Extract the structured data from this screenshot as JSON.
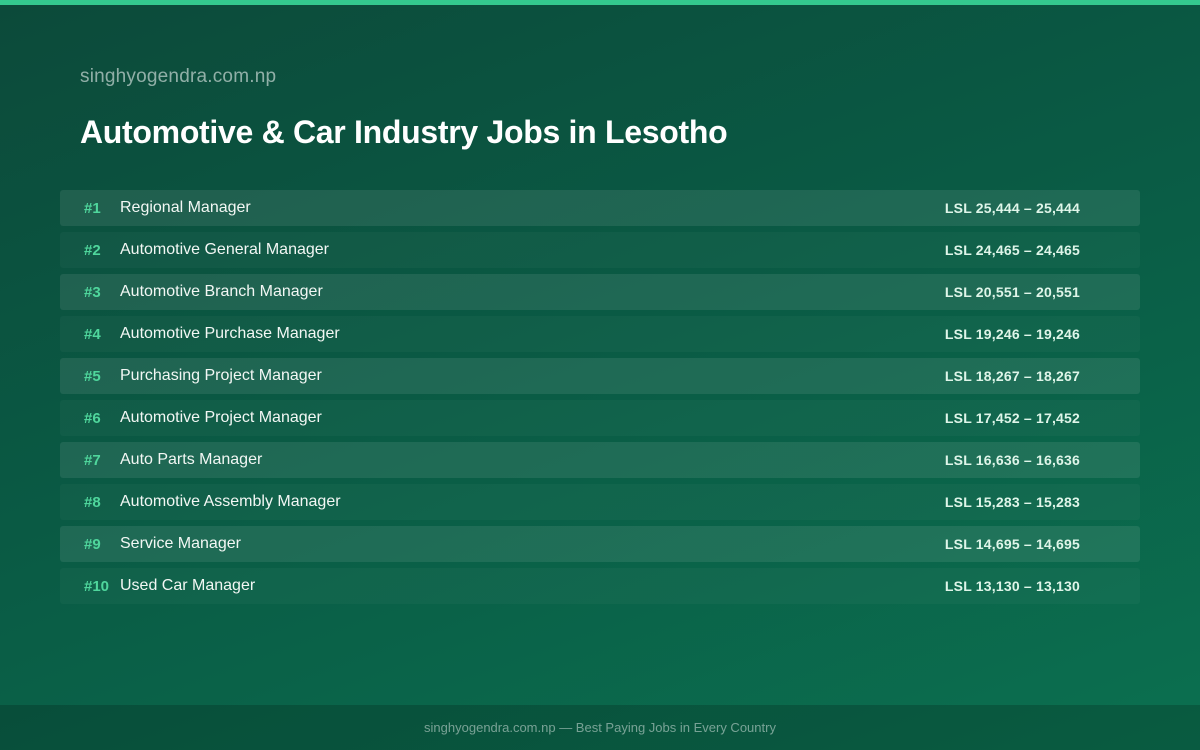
{
  "site": {
    "name": "singhyogendra.com.np"
  },
  "page": {
    "title": "Automotive & Car Industry Jobs in Lesotho"
  },
  "jobs": [
    {
      "rank": "#1",
      "title": "Regional Manager",
      "salary": "LSL 25,444 – 25,444"
    },
    {
      "rank": "#2",
      "title": "Automotive General Manager",
      "salary": "LSL 24,465 – 24,465"
    },
    {
      "rank": "#3",
      "title": "Automotive Branch Manager",
      "salary": "LSL 20,551 – 20,551"
    },
    {
      "rank": "#4",
      "title": "Automotive Purchase Manager",
      "salary": "LSL 19,246 – 19,246"
    },
    {
      "rank": "#5",
      "title": "Purchasing Project Manager",
      "salary": "LSL 18,267 – 18,267"
    },
    {
      "rank": "#6",
      "title": "Automotive Project Manager",
      "salary": "LSL 17,452 – 17,452"
    },
    {
      "rank": "#7",
      "title": "Auto Parts Manager",
      "salary": "LSL 16,636 – 16,636"
    },
    {
      "rank": "#8",
      "title": "Automotive Assembly Manager",
      "salary": "LSL 15,283 – 15,283"
    },
    {
      "rank": "#9",
      "title": "Service Manager",
      "salary": "LSL 14,695 – 14,695"
    },
    {
      "rank": "#10",
      "title": "Used Car Manager",
      "salary": "LSL 13,130 – 13,130"
    }
  ],
  "footer": {
    "text": "singhyogendra.com.np — Best Paying Jobs in Every Country"
  },
  "colors": {
    "accent": "#34c98e",
    "rank": "#4fd69c",
    "background": "#0a5a44"
  }
}
